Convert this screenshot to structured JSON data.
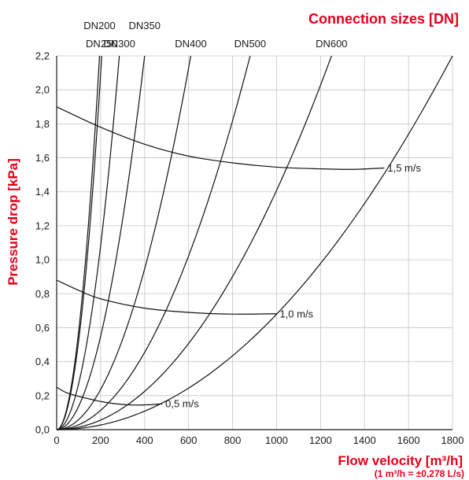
{
  "chart_data": {
    "type": "line",
    "title": "Connection sizes [DN]",
    "xlabel": "Flow velocity [m³/h]",
    "xlabel_note": "(1 m³/h = ±0,278 L/s)",
    "ylabel": "Pressure drop [kPa]",
    "xlim": [
      0,
      1800
    ],
    "ylim": [
      0,
      2.2
    ],
    "x_ticks": [
      0,
      200,
      400,
      600,
      800,
      1000,
      1200,
      1400,
      1600,
      1800
    ],
    "x_tick_labels": [
      "0",
      "200",
      "400",
      "600",
      "800",
      "1000",
      "1200",
      "1400",
      "1600",
      "1800"
    ],
    "y_ticks": [
      0,
      0.2,
      0.4,
      0.6,
      0.8,
      1.0,
      1.2,
      1.4,
      1.6,
      1.8,
      2.0,
      2.2
    ],
    "y_tick_labels": [
      "0,0",
      "0,2",
      "0,4",
      "0,6",
      "0,8",
      "1,0",
      "1,2",
      "1,4",
      "1,6",
      "1,8",
      "2,0",
      "2,2"
    ],
    "grid": true,
    "connection_curves": [
      {
        "name": "DN200",
        "x_at_top": 195
      },
      {
        "name": "DN250",
        "x_at_top": 205
      },
      {
        "name": "DN300",
        "x_at_top": 285
      },
      {
        "name": "DN350",
        "x_at_top": 400
      },
      {
        "name": "DN400",
        "x_at_top": 610
      },
      {
        "name": "DN500",
        "x_at_top": 880
      },
      {
        "name": "DN600",
        "x_at_top": 1250
      },
      {
        "name": "",
        "x_at_top": 1800
      }
    ],
    "velocity_curves": [
      {
        "name": "1,5 m/s",
        "points": [
          [
            0,
            1.9
          ],
          [
            200,
            1.78
          ],
          [
            400,
            1.68
          ],
          [
            600,
            1.61
          ],
          [
            800,
            1.57
          ],
          [
            1000,
            1.545
          ],
          [
            1200,
            1.535
          ],
          [
            1350,
            1.532
          ],
          [
            1490,
            1.54
          ]
        ]
      },
      {
        "name": "1,0 m/s",
        "points": [
          [
            0,
            0.88
          ],
          [
            100,
            0.82
          ],
          [
            200,
            0.77
          ],
          [
            400,
            0.715
          ],
          [
            600,
            0.69
          ],
          [
            800,
            0.68
          ],
          [
            1000,
            0.682
          ]
        ]
      },
      {
        "name": "0,5 m/s",
        "points": [
          [
            0,
            0.25
          ],
          [
            50,
            0.215
          ],
          [
            150,
            0.18
          ],
          [
            250,
            0.155
          ],
          [
            350,
            0.145
          ],
          [
            430,
            0.147
          ],
          [
            480,
            0.152
          ]
        ]
      }
    ]
  }
}
